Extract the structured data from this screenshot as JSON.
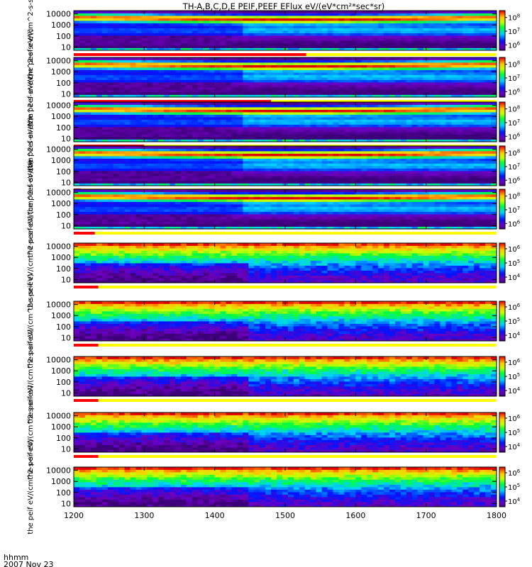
{
  "figure": {
    "title": "TH-A,B,C,D,E PEIF,PEEF EFlux eV/(eV*cm²*sec*sr)",
    "footer_line1": "hhmm",
    "footer_line2": "2007 Nov 23"
  },
  "chart_data": {
    "type": "heatmap",
    "title": "TH-A,B,C,D,E PEIF,PEEF EFlux eV/(eV*cm²*sec*sr)",
    "x_axis": {
      "label": "hhmm",
      "date": "2007 Nov 23",
      "range": [
        1200,
        1800
      ],
      "ticks": [
        1200,
        1300,
        1400,
        1500,
        1600,
        1700,
        1800
      ],
      "tick_labels": [
        "1200",
        "1300",
        "1400",
        "1500",
        "1600",
        "1700",
        "1800"
      ]
    },
    "y_axis": {
      "scale": "log",
      "range": [
        5,
        20000
      ],
      "ticks": [
        10,
        100,
        1000,
        10000
      ],
      "tick_labels": [
        "10",
        "100",
        "1000",
        "10000"
      ]
    },
    "colormap": "rainbow (purple-blue-cyan-green-yellow-red)",
    "panels": [
      {
        "ylabel": "the peef eV/(cm^2-s-sr-eV)",
        "cbar": {
          "log_range": [
            5.6,
            8.5
          ],
          "ticks": [
            8,
            7,
            6
          ]
        },
        "mode": "ion",
        "bar": {
          "red_end": 1530,
          "red_color": "#ff0000",
          "yellow_color": "#ffff00"
        }
      },
      {
        "ylabel": "the peef eV/(cm^2-s-sr-eV)",
        "cbar": {
          "log_range": [
            5.6,
            8.5
          ],
          "ticks": [
            8,
            7,
            6
          ]
        },
        "mode": "ion",
        "bar": {
          "red_end": 1480,
          "red_color": "#ff0000",
          "yellow_color": "#ffff00"
        }
      },
      {
        "ylabel": "the peef eV/(cm^2-s-sr-eV)",
        "cbar": {
          "log_range": [
            5.6,
            8.5
          ],
          "ticks": [
            8,
            7,
            6
          ]
        },
        "mode": "ion",
        "bar": {
          "red_end": 1300,
          "red_color": "#ff0000",
          "yellow_color": "#ffff00"
        }
      },
      {
        "ylabel": "the peef eV/(cm^2-s-sr-eV)",
        "cbar": {
          "log_range": [
            5.6,
            8.5
          ],
          "ticks": [
            8,
            7,
            6
          ]
        },
        "mode": "ion",
        "bar": {
          "red_end": 1210,
          "red_color": "#ff0000",
          "yellow_color": "#ffff00"
        }
      },
      {
        "ylabel": "the peef eV/(cm^2-s-sr-eV)",
        "cbar": {
          "log_range": [
            5.6,
            8.5
          ],
          "ticks": [
            8,
            7,
            6
          ]
        },
        "mode": "ion",
        "bar": {
          "red_end": 1230,
          "red_color": "#ff0000",
          "yellow_color": "#ffff00"
        }
      },
      {
        "ylabel": "the peif eV/(cm^2-s-sr-eV)",
        "cbar": {
          "log_range": [
            3.6,
            6.4
          ],
          "ticks": [
            6,
            5,
            4
          ]
        },
        "mode": "electron",
        "bar": {
          "red_end": 1235,
          "red_color": "#ff0000",
          "yellow_color": "#ffff00"
        }
      },
      {
        "ylabel": "the peif eV/(cm^2-s-sr-eV)",
        "cbar": {
          "log_range": [
            3.6,
            6.4
          ],
          "ticks": [
            6,
            5,
            4
          ]
        },
        "mode": "electron",
        "bar": {
          "red_end": 1235,
          "red_color": "#ff0000",
          "yellow_color": "#ffff00"
        }
      },
      {
        "ylabel": "the peif eV/(cm^2-s-sr-eV)",
        "cbar": {
          "log_range": [
            3.6,
            6.4
          ],
          "ticks": [
            6,
            5,
            4
          ]
        },
        "mode": "electron",
        "bar": {
          "red_end": 1235,
          "red_color": "#ff0000",
          "yellow_color": "#ffff00"
        }
      },
      {
        "ylabel": "the peif eV/(cm^2-s-sr-eV)",
        "cbar": {
          "log_range": [
            3.6,
            6.4
          ],
          "ticks": [
            6,
            5,
            4
          ]
        },
        "mode": "electron",
        "bar": {
          "red_end": 1235,
          "red_color": "#ff0000",
          "yellow_color": "#ffff00"
        }
      },
      {
        "ylabel": "the peif eV/(cm^2-s-sr-eV)",
        "cbar": {
          "log_range": [
            3.6,
            6.4
          ],
          "ticks": [
            6,
            5,
            4
          ]
        },
        "mode": "electron",
        "bar": null
      }
    ]
  }
}
